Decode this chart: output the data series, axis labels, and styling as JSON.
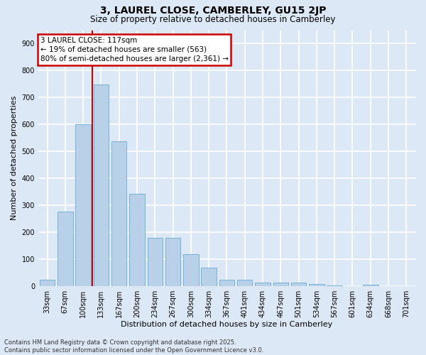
{
  "title": "3, LAUREL CLOSE, CAMBERLEY, GU15 2JP",
  "subtitle": "Size of property relative to detached houses in Camberley",
  "xlabel": "Distribution of detached houses by size in Camberley",
  "ylabel": "Number of detached properties",
  "categories": [
    "33sqm",
    "67sqm",
    "100sqm",
    "133sqm",
    "167sqm",
    "200sqm",
    "234sqm",
    "267sqm",
    "300sqm",
    "334sqm",
    "367sqm",
    "401sqm",
    "434sqm",
    "467sqm",
    "501sqm",
    "534sqm",
    "567sqm",
    "601sqm",
    "634sqm",
    "668sqm",
    "701sqm"
  ],
  "values": [
    22,
    275,
    600,
    748,
    537,
    343,
    178,
    178,
    118,
    68,
    22,
    22,
    13,
    13,
    12,
    8,
    3,
    0,
    5,
    0,
    0
  ],
  "bar_color": "#b8d0e8",
  "bar_edge_color": "#6aaad4",
  "fig_bg_color": "#dce8f5",
  "axes_bg_color": "#dce8f5",
  "grid_color": "#ffffff",
  "annotation_text_line1": "3 LAUREL CLOSE: 117sqm",
  "annotation_text_line2": "← 19% of detached houses are smaller (563)",
  "annotation_text_line3": "80% of semi-detached houses are larger (2,361) →",
  "annotation_box_color": "#cc0000",
  "vline_color": "#cc0000",
  "footnote": "Contains HM Land Registry data © Crown copyright and database right 2025.\nContains public sector information licensed under the Open Government Licence v3.0.",
  "ylim": [
    0,
    950
  ],
  "yticks": [
    0,
    100,
    200,
    300,
    400,
    500,
    600,
    700,
    800,
    900
  ],
  "title_fontsize": 10,
  "subtitle_fontsize": 8.5,
  "ylabel_fontsize": 8,
  "xlabel_fontsize": 8,
  "tick_fontsize": 7,
  "footnote_fontsize": 6,
  "annotation_fontsize": 7.5,
  "vline_x": 2.52
}
